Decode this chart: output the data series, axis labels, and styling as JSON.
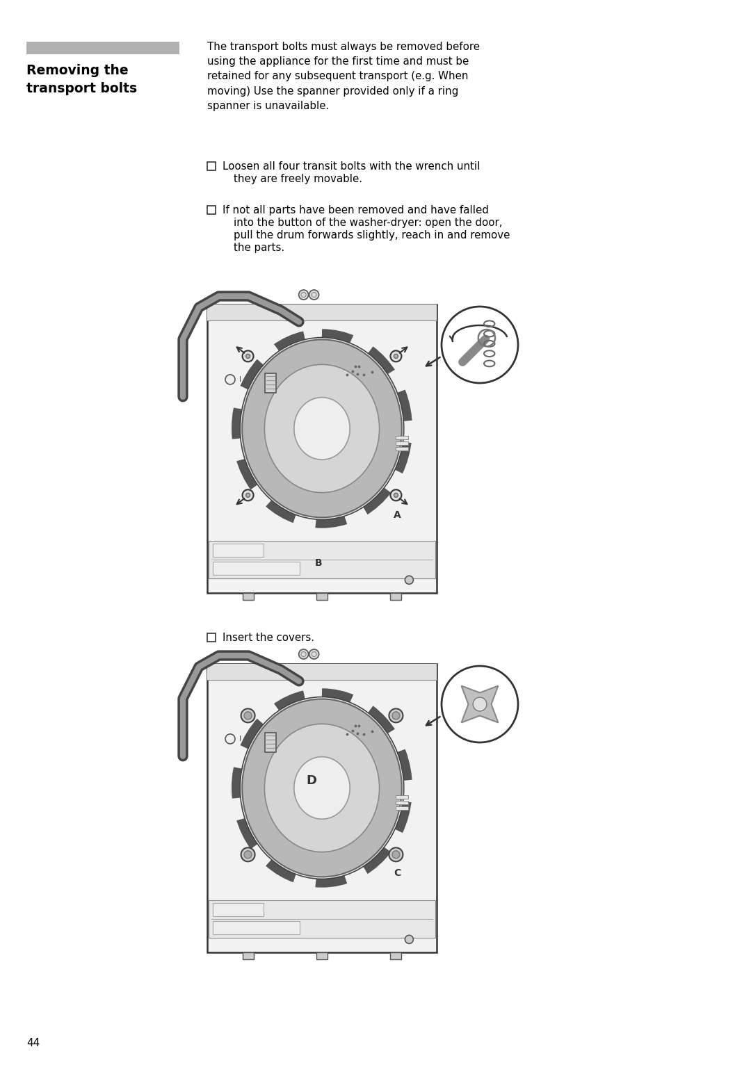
{
  "page_bg": "#ffffff",
  "heading_text": "Removing the\ntransport bolts",
  "body_text_lines": [
    "The transport bolts must always be removed before",
    "using the appliance for the first time and must be",
    "retained for any subsequent transport (e.g. When",
    "moving) Use the spanner provided only if a ring",
    "spanner is unavailable."
  ],
  "bullet1_line1": "Loosen all four transit bolts with the wrench until",
  "bullet1_line2": "they are freely movable.",
  "bullet2_line1": "If not all parts have been removed and have falled",
  "bullet2_line2": "into the button of the washer-dryer: open the door,",
  "bullet2_line3": "pull the drum forwards slightly, reach in and remove",
  "bullet2_line4": "the parts.",
  "bullet3": "Insert the covers.",
  "page_number": "44",
  "bar_color": "#b8b8b8",
  "text_color": "#1a1a1a",
  "machine_bg": "#f0f0f0",
  "machine_edge": "#333333",
  "drum_outer_color": "#aaaaaa",
  "drum_mid_color": "#cccccc",
  "drum_inner_color": "#e8e8e8",
  "rope_color": "#555555",
  "hose_dark": "#555555",
  "hose_light": "#999999"
}
